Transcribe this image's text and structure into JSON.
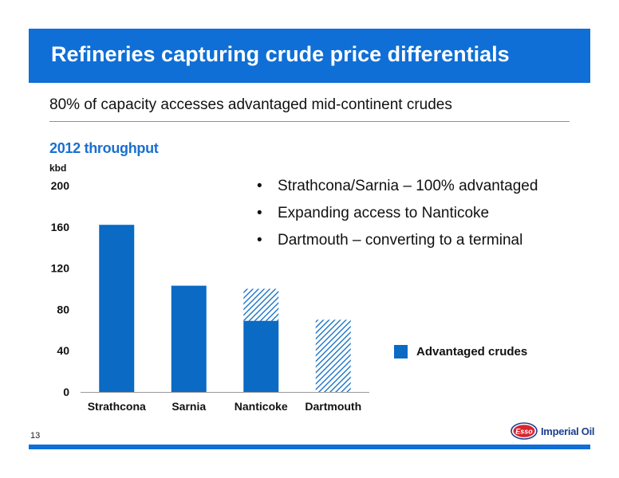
{
  "slide": {
    "title": "Refineries capturing crude price differentials",
    "subtitle": "80% of capacity accesses advantaged mid-continent crudes",
    "section_label": "2012 throughput",
    "page_number": "13"
  },
  "bullets": [
    "Strathcona/Sarnia – 100% advantaged",
    "Expanding access to Nanticoke",
    "Dartmouth – converting to a terminal"
  ],
  "logo": {
    "badge": "Esso",
    "wordmark": "Imperial Oil"
  },
  "legend": {
    "label": "Advantaged crudes",
    "color": "#0a6ac4"
  },
  "chart_data": {
    "type": "bar",
    "stacked": true,
    "ylabel": "kbd",
    "ylim": [
      0,
      200
    ],
    "yticks": [
      0,
      40,
      80,
      120,
      160,
      200
    ],
    "categories": [
      "Strathcona",
      "Sarnia",
      "Nanticoke",
      "Dartmouth"
    ],
    "series": [
      {
        "name": "Advantaged crudes",
        "values": [
          162,
          103,
          69,
          0
        ],
        "color": "#0a6ac4",
        "pattern": "solid"
      },
      {
        "values": [
          0,
          0,
          31,
          70
        ],
        "color": "#0a6ac4",
        "pattern": "hatched"
      }
    ],
    "grid": false
  }
}
